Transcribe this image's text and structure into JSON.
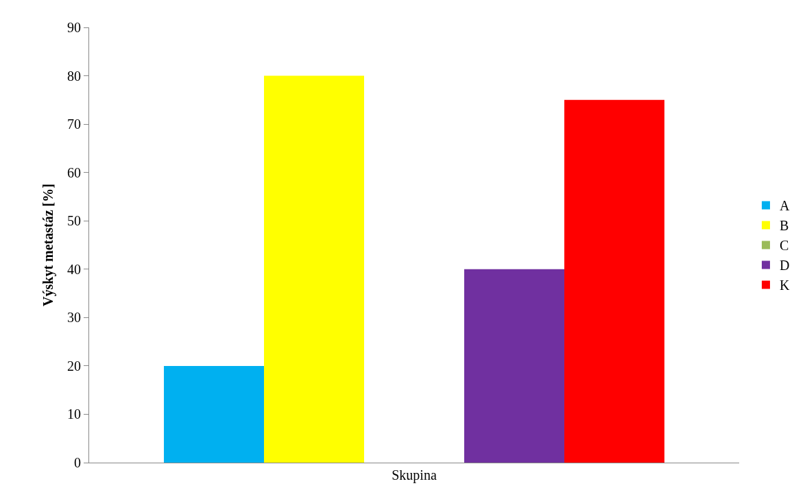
{
  "chart_data": {
    "type": "bar",
    "ylabel": "Výskyt metastáz [%]",
    "categories": [
      "Skupina"
    ],
    "series": [
      {
        "name": "A",
        "color": "#00b0f0",
        "values": [
          20
        ]
      },
      {
        "name": "B",
        "color": "#ffff00",
        "values": [
          80
        ]
      },
      {
        "name": "C",
        "color": "#9bbb59",
        "values": [
          0
        ]
      },
      {
        "name": "D",
        "color": "#7030a0",
        "values": [
          40
        ]
      },
      {
        "name": "K",
        "color": "#ff0000",
        "values": [
          75
        ]
      }
    ],
    "ylim": [
      0,
      90
    ],
    "yticks": [
      0,
      10,
      20,
      30,
      40,
      50,
      60,
      70,
      80,
      90
    ],
    "legend": "right"
  }
}
